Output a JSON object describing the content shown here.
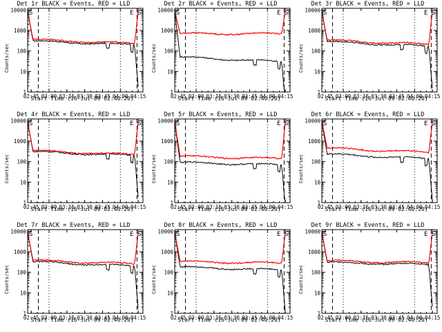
{
  "chart_data": [
    {
      "type": "line",
      "title": "Det 1r BLACK = Events, RED = LLD",
      "xlabel": "Start Time (16-Jul-09 02:40:20)",
      "ylabel": "Counts/sec",
      "series": [
        {
          "name": "Events",
          "color": "#000000",
          "level": 300,
          "end": 200,
          "extra": "dip"
        },
        {
          "name": "LLD",
          "color": "#ff0000",
          "level": 360,
          "end": 230
        }
      ]
    },
    {
      "type": "line",
      "title": "Det 2r BLACK = Events, RED = LLD",
      "xlabel": "Start Time (16-Jul-09 02:40:20)",
      "ylabel": "Counts/sec",
      "series": [
        {
          "name": "Events",
          "color": "#000000",
          "level": 50,
          "end": 30,
          "extra": "dip"
        },
        {
          "name": "LLD",
          "color": "#ff0000",
          "level": 700,
          "end": 700
        }
      ]
    },
    {
      "type": "line",
      "title": "Det 3r BLACK = Events, RED = LLD",
      "xlabel": "Start Time (16-Jul-09 02:40:20)",
      "ylabel": "Counts/sec",
      "series": [
        {
          "name": "Events",
          "color": "#000000",
          "level": 280,
          "end": 170,
          "extra": "dip"
        },
        {
          "name": "LLD",
          "color": "#ff0000",
          "level": 330,
          "end": 210
        }
      ]
    },
    {
      "type": "line",
      "title": "Det 4r BLACK = Events, RED = LLD",
      "xlabel": "Start Time (16-Jul-09 02:40:20)",
      "ylabel": "Counts/sec",
      "series": [
        {
          "name": "Events",
          "color": "#000000",
          "level": 300,
          "end": 200,
          "extra": "dip"
        },
        {
          "name": "LLD",
          "color": "#ff0000",
          "level": 340,
          "end": 220
        }
      ]
    },
    {
      "type": "line",
      "title": "Det 5r BLACK = Events, RED = LLD",
      "xlabel": "Start Time (16-Jul-09 02:40:20)",
      "ylabel": "Counts/sec",
      "series": [
        {
          "name": "Events",
          "color": "#000000",
          "level": 90,
          "end": 70,
          "extra": "dip"
        },
        {
          "name": "LLD",
          "color": "#ff0000",
          "level": 180,
          "end": 140
        }
      ]
    },
    {
      "type": "line",
      "title": "Det 6r BLACK = Events, RED = LLD",
      "xlabel": "Start Time (16-Jul-09 02:40:20)",
      "ylabel": "Counts/sec",
      "series": [
        {
          "name": "Events",
          "color": "#000000",
          "level": 230,
          "end": 140,
          "extra": "dip"
        },
        {
          "name": "LLD",
          "color": "#ff0000",
          "level": 450,
          "end": 280
        }
      ]
    },
    {
      "type": "line",
      "title": "Det 7r BLACK = Events, RED = LLD",
      "xlabel": "Start Time (16-Jul-09 02:40:20)",
      "ylabel": "Counts/sec",
      "series": [
        {
          "name": "Events",
          "color": "#000000",
          "level": 320,
          "end": 200,
          "extra": "dip"
        },
        {
          "name": "LLD",
          "color": "#ff0000",
          "level": 380,
          "end": 260
        }
      ]
    },
    {
      "type": "line",
      "title": "Det 8r BLACK = Events, RED = LLD",
      "xlabel": "Start Time (16-Jul-09 02:40:20)",
      "ylabel": "Counts/sec",
      "series": [
        {
          "name": "Events",
          "color": "#000000",
          "level": 180,
          "end": 130,
          "extra": "dip"
        },
        {
          "name": "LLD",
          "color": "#ff0000",
          "level": 330,
          "end": 280
        }
      ]
    },
    {
      "type": "line",
      "title": "Det 9r BLACK = Events, RED = LLD",
      "xlabel": "Start Time (16-Jul-09 02:40:20)",
      "ylabel": "Counts/sec",
      "series": [
        {
          "name": "Events",
          "color": "#000000",
          "level": 300,
          "end": 240,
          "extra": "none"
        },
        {
          "name": "LLD",
          "color": "#ff0000",
          "level": 360,
          "end": 290
        }
      ]
    }
  ],
  "axes": {
    "x_ticks": [
      "02:45",
      "03:00",
      "03:15",
      "03:30",
      "03:45",
      "04:00",
      "04:15"
    ],
    "x_tick_values_min": [
      0,
      15,
      30,
      45,
      60,
      75,
      90
    ],
    "x_range_min": [
      -3,
      94
    ],
    "y_ticks": [
      "1",
      "10",
      "100",
      "1000",
      "10000"
    ],
    "y_range": [
      1,
      12000
    ],
    "y_scale": "log"
  },
  "markers": {
    "S_label": "S",
    "E_label": "E",
    "dashed_x_min": [
      -3,
      6,
      89
    ],
    "dotted_x_min": [
      15,
      75
    ]
  }
}
